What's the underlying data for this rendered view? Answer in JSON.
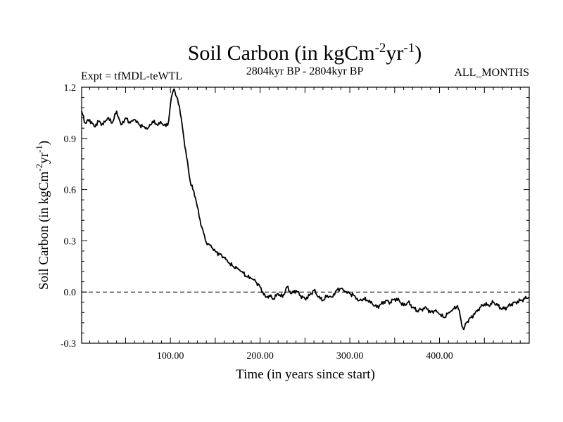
{
  "chart_data": {
    "type": "line",
    "title": "Soil Carbon (in kgCm",
    "title_sup1": "-2",
    "title_mid": "yr",
    "title_sup2": "-1",
    "title_end": ")",
    "subtitle_left": "Expt = tfMDL-teWTL",
    "subtitle_center": "2804kyr BP - 2804kyr BP",
    "subtitle_right": "ALL_MONTHS",
    "xlabel": "Time (in years since start)",
    "ylabel_text": "Soil Carbon (in kgCm",
    "ylabel_sup1": "-2",
    "ylabel_mid": "yr",
    "ylabel_sup2": "-1",
    "ylabel_end": ")",
    "xlim": [
      1,
      500
    ],
    "ylim": [
      -0.3,
      1.2
    ],
    "xticks": [
      {
        "value": 100,
        "label": "100.00"
      },
      {
        "value": 200,
        "label": "200.00"
      },
      {
        "value": 300,
        "label": "300.00"
      },
      {
        "value": 400,
        "label": "400.00"
      }
    ],
    "yticks": [
      {
        "value": -0.3,
        "label": "-0.3"
      },
      {
        "value": 0.0,
        "label": "0.0"
      },
      {
        "value": 0.3,
        "label": "0.3"
      },
      {
        "value": 0.6,
        "label": "0.6"
      },
      {
        "value": 0.9,
        "label": "0.9"
      },
      {
        "value": 1.2,
        "label": "1.2"
      }
    ],
    "reference_line": {
      "value": 0.0,
      "style": "dashed"
    },
    "series": [
      {
        "name": "Soil Carbon",
        "color": "#000000",
        "x": [
          1,
          5,
          10,
          15,
          20,
          25,
          30,
          35,
          40,
          45,
          50,
          55,
          60,
          65,
          70,
          75,
          80,
          85,
          90,
          95,
          98,
          100,
          102,
          104,
          106,
          108,
          110,
          112,
          115,
          118,
          120,
          122,
          125,
          128,
          130,
          132,
          135,
          138,
          140,
          143,
          146,
          150,
          155,
          160,
          165,
          170,
          175,
          180,
          185,
          190,
          195,
          200,
          203,
          206,
          210,
          215,
          220,
          225,
          230,
          235,
          240,
          245,
          250,
          255,
          260,
          265,
          270,
          275,
          280,
          285,
          290,
          295,
          300,
          305,
          310,
          315,
          320,
          325,
          330,
          335,
          340,
          345,
          350,
          355,
          360,
          365,
          370,
          375,
          380,
          385,
          390,
          395,
          400,
          405,
          410,
          415,
          420,
          423,
          425,
          427,
          430,
          435,
          440,
          445,
          450,
          455,
          460,
          465,
          470,
          475,
          480,
          485,
          490,
          495,
          500
        ],
        "y": [
          1.06,
          0.99,
          1.01,
          0.97,
          1.0,
          0.98,
          1.02,
          0.99,
          1.06,
          0.98,
          1.02,
          0.99,
          1.01,
          0.98,
          0.97,
          0.96,
          1.0,
          0.98,
          0.99,
          0.97,
          1.0,
          1.1,
          1.16,
          1.19,
          1.15,
          1.13,
          1.09,
          1.02,
          0.9,
          0.79,
          0.72,
          0.65,
          0.6,
          0.55,
          0.5,
          0.44,
          0.38,
          0.33,
          0.29,
          0.28,
          0.26,
          0.24,
          0.22,
          0.2,
          0.17,
          0.15,
          0.14,
          0.12,
          0.09,
          0.08,
          0.06,
          0.03,
          0.0,
          -0.03,
          -0.02,
          -0.04,
          -0.01,
          -0.03,
          0.03,
          -0.01,
          0.01,
          -0.02,
          -0.04,
          -0.02,
          0.01,
          -0.03,
          -0.05,
          -0.02,
          -0.03,
          0.01,
          0.02,
          0.0,
          -0.01,
          -0.02,
          -0.05,
          -0.04,
          -0.05,
          -0.07,
          -0.09,
          -0.07,
          -0.05,
          -0.06,
          -0.04,
          -0.05,
          -0.08,
          -0.06,
          -0.09,
          -0.11,
          -0.1,
          -0.09,
          -0.12,
          -0.11,
          -0.13,
          -0.15,
          -0.12,
          -0.1,
          -0.08,
          -0.14,
          -0.2,
          -0.22,
          -0.18,
          -0.15,
          -0.12,
          -0.09,
          -0.07,
          -0.08,
          -0.06,
          -0.08,
          -0.1,
          -0.09,
          -0.07,
          -0.06,
          -0.05,
          -0.04,
          -0.03
        ]
      }
    ]
  }
}
